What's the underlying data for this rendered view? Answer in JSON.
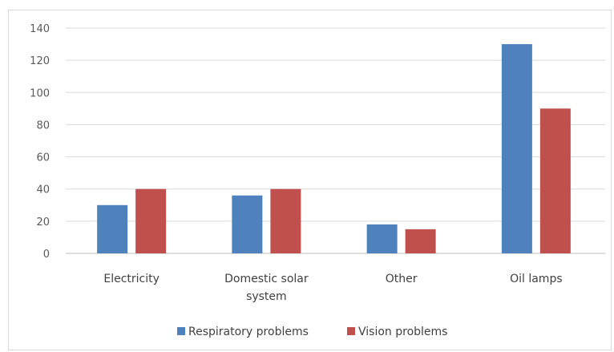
{
  "chart_data": {
    "type": "bar",
    "categories": [
      "Electricity",
      "Domestic solar system",
      "Other",
      "Oil lamps"
    ],
    "category_lines": [
      [
        "Electricity"
      ],
      [
        "Domestic solar",
        "system"
      ],
      [
        "Other"
      ],
      [
        "Oil lamps"
      ]
    ],
    "series": [
      {
        "name": "Respiratory problems",
        "color": "#4f81bd",
        "values": [
          30,
          36,
          18,
          130
        ]
      },
      {
        "name": "Vision problems",
        "color": "#c0504d",
        "values": [
          40,
          40,
          15,
          90
        ]
      }
    ],
    "ylim": [
      0,
      140
    ],
    "yticks": [
      0,
      20,
      40,
      60,
      80,
      100,
      120,
      140
    ],
    "grid": true,
    "legend_position": "bottom",
    "gridline_color": "#d9d9d9"
  }
}
